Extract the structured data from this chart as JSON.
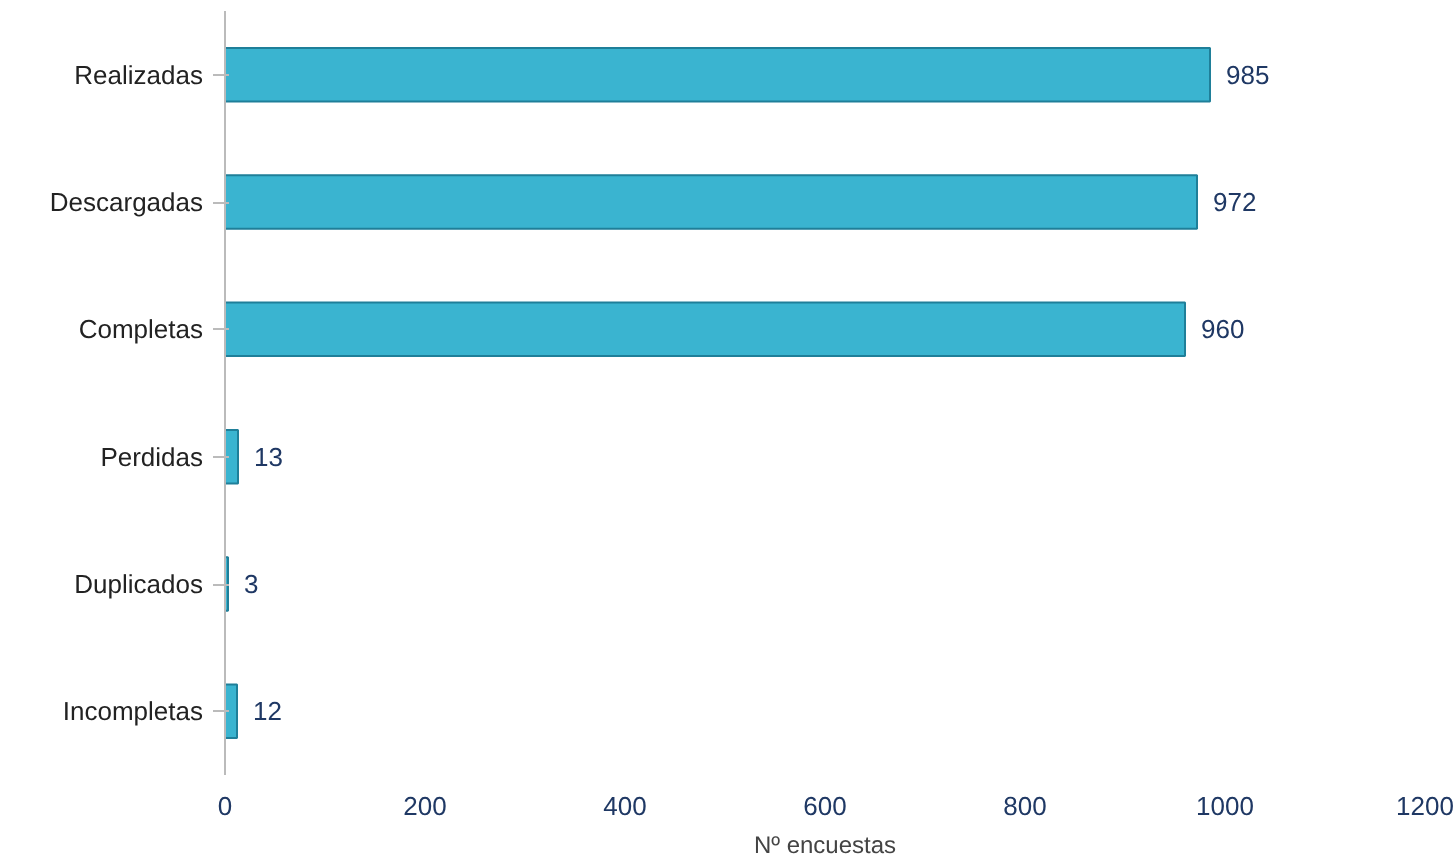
{
  "chart_data": {
    "type": "bar",
    "orientation": "horizontal",
    "xlabel": "Nº encuestas",
    "categories": [
      "Realizadas",
      "Descargadas",
      "Completas",
      "Perdidas",
      "Duplicados",
      "Incompletas"
    ],
    "values": [
      985,
      972,
      960,
      13,
      3,
      12
    ],
    "color": "#3ab4d0",
    "data_labels": true,
    "grid": false,
    "xlim": [
      0,
      1200
    ],
    "xticks": [
      0,
      200,
      400,
      600,
      800,
      1000,
      1200
    ]
  }
}
